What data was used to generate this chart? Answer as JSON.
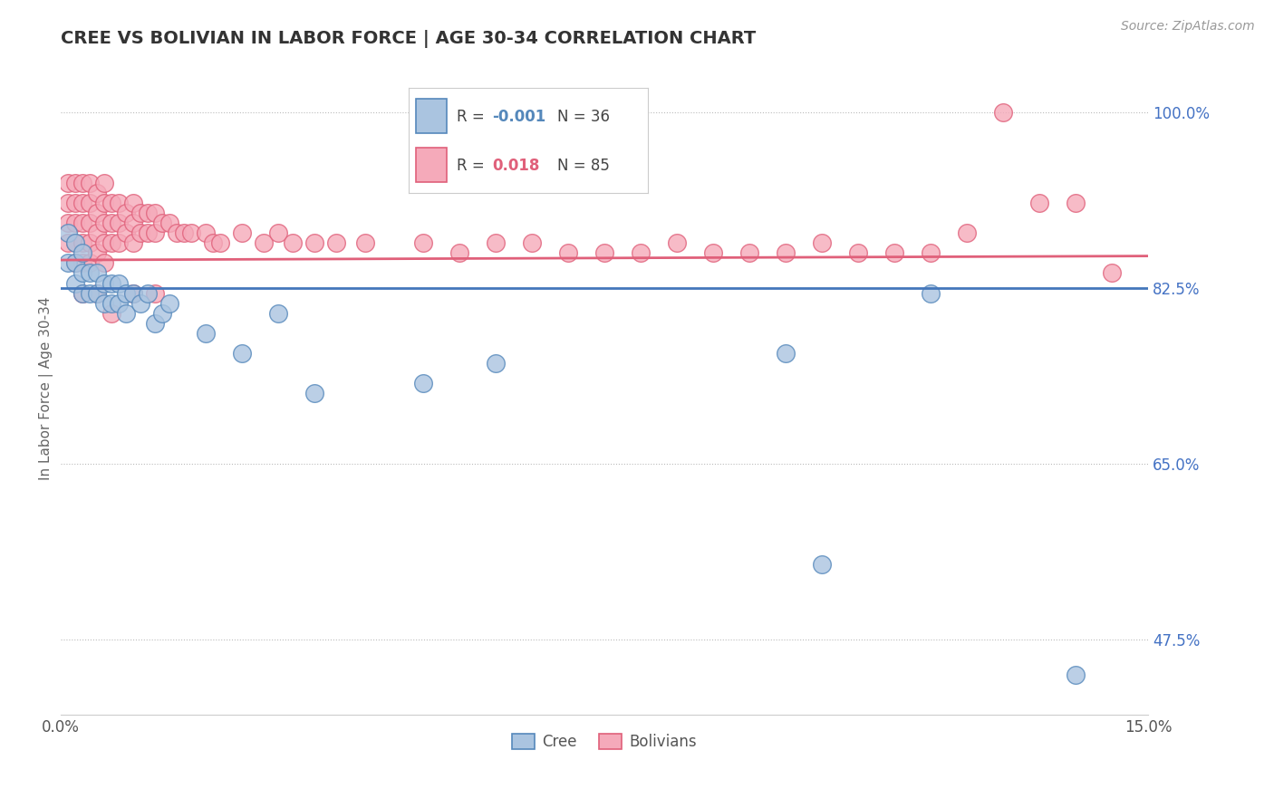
{
  "title": "CREE VS BOLIVIAN IN LABOR FORCE | AGE 30-34 CORRELATION CHART",
  "source_text": "Source: ZipAtlas.com",
  "ylabel": "In Labor Force | Age 30-34",
  "xlim": [
    0.0,
    0.15
  ],
  "ylim": [
    0.4,
    1.05
  ],
  "cree_color": "#aac4e0",
  "bolivian_color": "#f5aaba",
  "cree_edge_color": "#5588bb",
  "bolivian_edge_color": "#e0607a",
  "cree_line_color": "#4477bb",
  "bolivian_line_color": "#e0607a",
  "legend_R_cree": "-0.001",
  "legend_N_cree": "36",
  "legend_R_bolivian": "0.018",
  "legend_N_bolivian": "85",
  "cree_line_y": 0.825,
  "bolivian_line_y": 0.855,
  "cree_x": [
    0.001,
    0.001,
    0.002,
    0.002,
    0.002,
    0.003,
    0.003,
    0.003,
    0.004,
    0.004,
    0.005,
    0.005,
    0.006,
    0.006,
    0.007,
    0.007,
    0.008,
    0.008,
    0.009,
    0.009,
    0.01,
    0.011,
    0.012,
    0.013,
    0.014,
    0.015,
    0.02,
    0.025,
    0.03,
    0.035,
    0.05,
    0.06,
    0.1,
    0.105,
    0.12,
    0.14
  ],
  "cree_y": [
    0.88,
    0.85,
    0.87,
    0.85,
    0.83,
    0.86,
    0.84,
    0.82,
    0.84,
    0.82,
    0.84,
    0.82,
    0.83,
    0.81,
    0.83,
    0.81,
    0.83,
    0.81,
    0.82,
    0.8,
    0.82,
    0.81,
    0.82,
    0.79,
    0.8,
    0.81,
    0.78,
    0.76,
    0.8,
    0.72,
    0.73,
    0.75,
    0.76,
    0.55,
    0.82,
    0.44
  ],
  "bolivian_x": [
    0.001,
    0.001,
    0.001,
    0.001,
    0.002,
    0.002,
    0.002,
    0.002,
    0.002,
    0.003,
    0.003,
    0.003,
    0.003,
    0.003,
    0.004,
    0.004,
    0.004,
    0.004,
    0.004,
    0.005,
    0.005,
    0.005,
    0.005,
    0.006,
    0.006,
    0.006,
    0.006,
    0.006,
    0.007,
    0.007,
    0.007,
    0.008,
    0.008,
    0.008,
    0.009,
    0.009,
    0.01,
    0.01,
    0.01,
    0.011,
    0.011,
    0.012,
    0.012,
    0.013,
    0.013,
    0.014,
    0.015,
    0.016,
    0.017,
    0.018,
    0.02,
    0.021,
    0.022,
    0.025,
    0.028,
    0.03,
    0.032,
    0.035,
    0.038,
    0.042,
    0.05,
    0.055,
    0.06,
    0.065,
    0.07,
    0.075,
    0.08,
    0.085,
    0.09,
    0.095,
    0.1,
    0.105,
    0.11,
    0.115,
    0.12,
    0.125,
    0.13,
    0.135,
    0.14,
    0.145,
    0.003,
    0.005,
    0.007,
    0.01,
    0.013
  ],
  "bolivian_y": [
    0.93,
    0.91,
    0.89,
    0.87,
    0.93,
    0.91,
    0.89,
    0.87,
    0.85,
    0.93,
    0.91,
    0.89,
    0.87,
    0.85,
    0.93,
    0.91,
    0.89,
    0.87,
    0.85,
    0.92,
    0.9,
    0.88,
    0.86,
    0.93,
    0.91,
    0.89,
    0.87,
    0.85,
    0.91,
    0.89,
    0.87,
    0.91,
    0.89,
    0.87,
    0.9,
    0.88,
    0.91,
    0.89,
    0.87,
    0.9,
    0.88,
    0.9,
    0.88,
    0.9,
    0.88,
    0.89,
    0.89,
    0.88,
    0.88,
    0.88,
    0.88,
    0.87,
    0.87,
    0.88,
    0.87,
    0.88,
    0.87,
    0.87,
    0.87,
    0.87,
    0.87,
    0.86,
    0.87,
    0.87,
    0.86,
    0.86,
    0.86,
    0.87,
    0.86,
    0.86,
    0.86,
    0.87,
    0.86,
    0.86,
    0.86,
    0.88,
    1.0,
    0.91,
    0.91,
    0.84,
    0.82,
    0.82,
    0.8,
    0.82,
    0.82
  ]
}
